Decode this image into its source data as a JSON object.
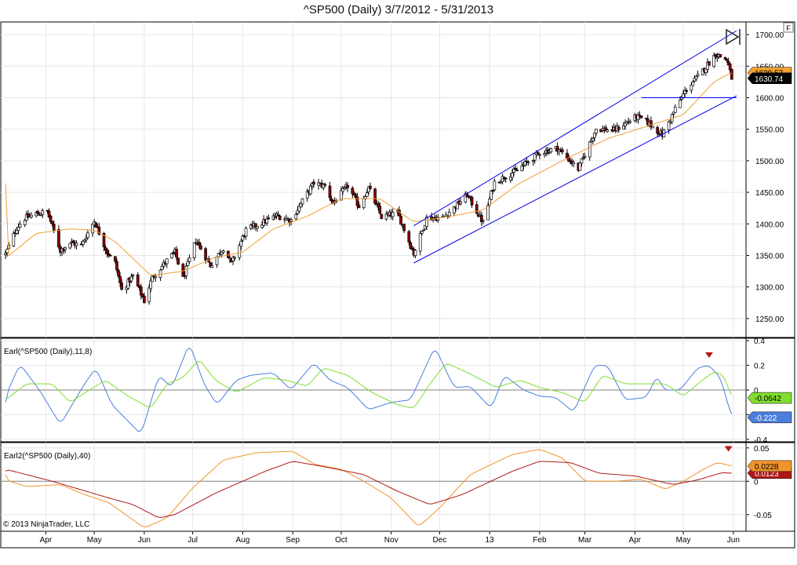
{
  "title": "^SP500 (Daily)  3/7/2012 - 5/31/2013",
  "copyright": "© 2013 NinjaTrader, LLC",
  "f_button": "F",
  "colors": {
    "up_candle": "#ffffff",
    "down_candle": "#8b0000",
    "wick": "#000000",
    "sma": "#f0a030",
    "trend_line": "#0000ee",
    "grid": "#e6e6e6",
    "earl_fast": "#4a7fdd",
    "earl_slow": "#80dd30",
    "earl2_a": "#f0952a",
    "earl2_b": "#b01818",
    "zero_line": "#808080"
  },
  "chart_data": [
    {
      "type": "candlestick",
      "panel": "price",
      "title": "^SP500 (Daily)  3/7/2012 - 5/31/2013",
      "ylim": [
        1220,
        1720
      ],
      "y_ticks": [
        "1250.00",
        "1300.00",
        "1350.00",
        "1400.00",
        "1450.00",
        "1500.00",
        "1550.00",
        "1600.00",
        "1650.00",
        "1700.00"
      ],
      "x_ticks": [
        "Apr",
        "May",
        "Jun",
        "Jul",
        "Aug",
        "Sep",
        "Oct",
        "Nov",
        "Dec",
        "13",
        "Feb",
        "Mar",
        "Apr",
        "May",
        "Jun"
      ],
      "close_anchors": [
        [
          "2012-03-07",
          1352
        ],
        [
          "2012-03-14",
          1394
        ],
        [
          "2012-03-19",
          1409
        ],
        [
          "2012-03-26",
          1416
        ],
        [
          "2012-04-02",
          1419
        ],
        [
          "2012-04-10",
          1358
        ],
        [
          "2012-04-16",
          1370
        ],
        [
          "2012-04-23",
          1366
        ],
        [
          "2012-05-01",
          1405
        ],
        [
          "2012-05-09",
          1355
        ],
        [
          "2012-05-14",
          1338
        ],
        [
          "2012-05-18",
          1295
        ],
        [
          "2012-05-25",
          1317
        ],
        [
          "2012-06-01",
          1278
        ],
        [
          "2012-06-06",
          1315
        ],
        [
          "2012-06-15",
          1342
        ],
        [
          "2012-06-20",
          1355
        ],
        [
          "2012-06-25",
          1313
        ],
        [
          "2012-07-03",
          1374
        ],
        [
          "2012-07-12",
          1334
        ],
        [
          "2012-07-20",
          1362
        ],
        [
          "2012-07-25",
          1337
        ],
        [
          "2012-08-03",
          1390
        ],
        [
          "2012-08-14",
          1403
        ],
        [
          "2012-08-22",
          1413
        ],
        [
          "2012-08-31",
          1406
        ],
        [
          "2012-09-06",
          1432
        ],
        [
          "2012-09-14",
          1465
        ],
        [
          "2012-09-21",
          1460
        ],
        [
          "2012-09-26",
          1433
        ],
        [
          "2012-10-05",
          1460
        ],
        [
          "2012-10-12",
          1428
        ],
        [
          "2012-10-18",
          1457
        ],
        [
          "2012-10-26",
          1411
        ],
        [
          "2012-11-05",
          1417
        ],
        [
          "2012-11-15",
          1353
        ],
        [
          "2012-11-23",
          1409
        ],
        [
          "2012-12-03",
          1410
        ],
        [
          "2012-12-11",
          1428
        ],
        [
          "2012-12-18",
          1446
        ],
        [
          "2012-12-28",
          1402
        ],
        [
          "2013-01-04",
          1466
        ],
        [
          "2013-01-18",
          1485
        ],
        [
          "2013-02-01",
          1513
        ],
        [
          "2013-02-12",
          1520
        ],
        [
          "2013-02-25",
          1487
        ],
        [
          "2013-03-08",
          1551
        ],
        [
          "2013-03-19",
          1548
        ],
        [
          "2013-04-02",
          1570
        ],
        [
          "2013-04-08",
          1563
        ],
        [
          "2013-04-18",
          1541
        ],
        [
          "2013-04-26",
          1582
        ],
        [
          "2013-05-03",
          1614
        ],
        [
          "2013-05-10",
          1633
        ],
        [
          "2013-05-21",
          1669
        ],
        [
          "2013-05-28",
          1660
        ],
        [
          "2013-05-31",
          1631
        ]
      ],
      "sma_anchors": [
        [
          "2012-03-07",
          1345
        ],
        [
          "2012-03-26",
          1385
        ],
        [
          "2012-04-16",
          1392
        ],
        [
          "2012-05-01",
          1390
        ],
        [
          "2012-05-14",
          1372
        ],
        [
          "2012-06-05",
          1318
        ],
        [
          "2012-06-25",
          1325
        ],
        [
          "2012-07-15",
          1347
        ],
        [
          "2012-08-01",
          1355
        ],
        [
          "2012-08-20",
          1392
        ],
        [
          "2012-09-10",
          1412
        ],
        [
          "2012-10-01",
          1440
        ],
        [
          "2012-10-25",
          1440
        ],
        [
          "2012-11-15",
          1403
        ],
        [
          "2012-12-10",
          1413
        ],
        [
          "2012-12-28",
          1422
        ],
        [
          "2013-01-18",
          1462
        ],
        [
          "2013-02-15",
          1500
        ],
        [
          "2013-03-15",
          1535
        ],
        [
          "2013-04-15",
          1560
        ],
        [
          "2013-05-01",
          1573
        ],
        [
          "2013-05-20",
          1625
        ],
        [
          "2013-05-31",
          1640
        ]
      ],
      "trend_lines": [
        {
          "from": [
            "2012-11-15",
            1397
          ],
          "to": [
            "2013-06-03",
            1706
          ]
        },
        {
          "from": [
            "2012-11-15",
            1338
          ],
          "to": [
            "2013-06-03",
            1603
          ]
        },
        {
          "from": [
            "2013-04-05",
            1600
          ],
          "to": [
            "2013-06-03",
            1600
          ]
        }
      ],
      "last_values": {
        "sma": "1639.57",
        "close": "1630.74"
      }
    },
    {
      "type": "line",
      "panel": "Earl",
      "title": "Earl(^SP500 (Daily),11,8)",
      "ylim": [
        -0.42,
        0.42
      ],
      "y_ticks": [
        "0.4",
        "0.2",
        "0",
        "-0.2",
        "-0.4"
      ],
      "series": [
        {
          "role": "fast",
          "last": "-0.222",
          "anchors": [
            [
              "2012-03-07",
              -0.05
            ],
            [
              "2012-03-16",
              0.21
            ],
            [
              "2012-03-28",
              0.0
            ],
            [
              "2012-04-10",
              -0.28
            ],
            [
              "2012-04-25",
              0.05
            ],
            [
              "2012-05-02",
              0.18
            ],
            [
              "2012-05-12",
              -0.12
            ],
            [
              "2012-05-30",
              -0.36
            ],
            [
              "2012-06-10",
              0.12
            ],
            [
              "2012-06-18",
              0.02
            ],
            [
              "2012-06-29",
              0.38
            ],
            [
              "2012-07-08",
              0.05
            ],
            [
              "2012-07-16",
              -0.12
            ],
            [
              "2012-07-28",
              0.08
            ],
            [
              "2012-08-06",
              0.12
            ],
            [
              "2012-08-20",
              0.14
            ],
            [
              "2012-08-31",
              0.0
            ],
            [
              "2012-09-14",
              0.22
            ],
            [
              "2012-09-24",
              0.08
            ],
            [
              "2012-10-05",
              0.02
            ],
            [
              "2012-10-18",
              -0.16
            ],
            [
              "2012-11-01",
              -0.1
            ],
            [
              "2012-11-13",
              -0.08
            ],
            [
              "2012-11-20",
              0.12
            ],
            [
              "2012-11-28",
              0.35
            ],
            [
              "2012-12-10",
              0.02
            ],
            [
              "2012-12-20",
              0.03
            ],
            [
              "2013-01-02",
              -0.15
            ],
            [
              "2013-01-10",
              0.12
            ],
            [
              "2013-01-22",
              0.0
            ],
            [
              "2013-02-01",
              -0.05
            ],
            [
              "2013-02-11",
              -0.06
            ],
            [
              "2013-02-22",
              -0.18
            ],
            [
              "2013-03-07",
              0.2
            ],
            [
              "2013-03-15",
              0.2
            ],
            [
              "2013-03-26",
              -0.08
            ],
            [
              "2013-04-08",
              -0.06
            ],
            [
              "2013-04-15",
              0.12
            ],
            [
              "2013-04-19",
              0.0
            ],
            [
              "2013-04-29",
              0.0
            ],
            [
              "2013-05-10",
              0.18
            ],
            [
              "2013-05-17",
              0.2
            ],
            [
              "2013-05-24",
              0.1
            ],
            [
              "2013-05-31",
              -0.22
            ]
          ]
        },
        {
          "role": "slow",
          "last": "-0.0642",
          "anchors": [
            [
              "2012-03-07",
              -0.08
            ],
            [
              "2012-03-20",
              0.05
            ],
            [
              "2012-04-05",
              0.05
            ],
            [
              "2012-04-16",
              -0.1
            ],
            [
              "2012-04-28",
              0.0
            ],
            [
              "2012-05-08",
              0.08
            ],
            [
              "2012-05-22",
              -0.05
            ],
            [
              "2012-06-05",
              -0.15
            ],
            [
              "2012-06-15",
              0.05
            ],
            [
              "2012-06-25",
              0.1
            ],
            [
              "2012-07-05",
              0.25
            ],
            [
              "2012-07-15",
              0.08
            ],
            [
              "2012-07-28",
              -0.02
            ],
            [
              "2012-08-14",
              0.1
            ],
            [
              "2012-08-28",
              0.08
            ],
            [
              "2012-09-10",
              0.03
            ],
            [
              "2012-09-20",
              0.18
            ],
            [
              "2012-10-05",
              0.12
            ],
            [
              "2012-10-20",
              -0.02
            ],
            [
              "2012-11-05",
              -0.12
            ],
            [
              "2012-11-15",
              -0.15
            ],
            [
              "2012-11-25",
              0.05
            ],
            [
              "2012-12-05",
              0.22
            ],
            [
              "2012-12-20",
              0.13
            ],
            [
              "2013-01-05",
              0.02
            ],
            [
              "2013-01-20",
              0.08
            ],
            [
              "2013-02-01",
              0.02
            ],
            [
              "2013-02-15",
              -0.02
            ],
            [
              "2013-03-01",
              -0.1
            ],
            [
              "2013-03-12",
              0.12
            ],
            [
              "2013-03-26",
              0.05
            ],
            [
              "2013-04-10",
              0.05
            ],
            [
              "2013-04-20",
              0.05
            ],
            [
              "2013-05-01",
              -0.05
            ],
            [
              "2013-05-10",
              0.05
            ],
            [
              "2013-05-20",
              0.15
            ],
            [
              "2013-05-26",
              0.12
            ],
            [
              "2013-05-31",
              -0.06
            ]
          ]
        }
      ]
    },
    {
      "type": "line",
      "panel": "Earl2",
      "title": "Earl2(^SP500 (Daily),40)",
      "ylim": [
        -0.075,
        0.058
      ],
      "y_ticks": [
        "0.05",
        "0",
        "-0.05"
      ],
      "series": [
        {
          "role": "a",
          "last": "0.0228",
          "anchors": [
            [
              "2012-03-07",
              0.002
            ],
            [
              "2012-03-20",
              -0.008
            ],
            [
              "2012-04-10",
              -0.005
            ],
            [
              "2012-04-25",
              -0.02
            ],
            [
              "2012-05-10",
              -0.032
            ],
            [
              "2012-06-01",
              -0.07
            ],
            [
              "2012-06-15",
              -0.055
            ],
            [
              "2012-07-01",
              -0.01
            ],
            [
              "2012-07-20",
              0.032
            ],
            [
              "2012-08-10",
              0.043
            ],
            [
              "2012-09-01",
              0.045
            ],
            [
              "2012-09-15",
              0.025
            ],
            [
              "2012-10-01",
              0.018
            ],
            [
              "2012-10-15",
              0.0
            ],
            [
              "2012-11-01",
              -0.025
            ],
            [
              "2012-11-18",
              -0.068
            ],
            [
              "2012-12-01",
              -0.04
            ],
            [
              "2012-12-20",
              0.01
            ],
            [
              "2013-01-15",
              0.04
            ],
            [
              "2013-02-01",
              0.048
            ],
            [
              "2013-02-15",
              0.035
            ],
            [
              "2013-03-01",
              0.0
            ],
            [
              "2013-03-20",
              0.0
            ],
            [
              "2013-04-05",
              0.003
            ],
            [
              "2013-04-20",
              -0.012
            ],
            [
              "2013-05-01",
              0.0
            ],
            [
              "2013-05-15",
              0.02
            ],
            [
              "2013-05-22",
              0.028
            ],
            [
              "2013-05-31",
              0.023
            ]
          ]
        },
        {
          "role": "b",
          "last": "0.0123",
          "anchors": [
            [
              "2012-03-07",
              0.018
            ],
            [
              "2012-04-05",
              0.0
            ],
            [
              "2012-05-10",
              -0.025
            ],
            [
              "2012-05-25",
              -0.035
            ],
            [
              "2012-06-10",
              -0.055
            ],
            [
              "2012-06-20",
              -0.05
            ],
            [
              "2012-07-15",
              -0.018
            ],
            [
              "2012-08-15",
              0.015
            ],
            [
              "2012-09-01",
              0.03
            ],
            [
              "2012-09-20",
              0.022
            ],
            [
              "2012-10-15",
              0.01
            ],
            [
              "2012-11-05",
              -0.015
            ],
            [
              "2012-11-25",
              -0.035
            ],
            [
              "2012-12-15",
              -0.02
            ],
            [
              "2013-01-15",
              0.015
            ],
            [
              "2013-02-01",
              0.03
            ],
            [
              "2013-02-20",
              0.028
            ],
            [
              "2013-03-10",
              0.012
            ],
            [
              "2013-04-01",
              0.008
            ],
            [
              "2013-04-25",
              -0.005
            ],
            [
              "2013-05-10",
              0.002
            ],
            [
              "2013-05-25",
              0.013
            ],
            [
              "2013-05-31",
              0.012
            ]
          ]
        }
      ]
    }
  ]
}
